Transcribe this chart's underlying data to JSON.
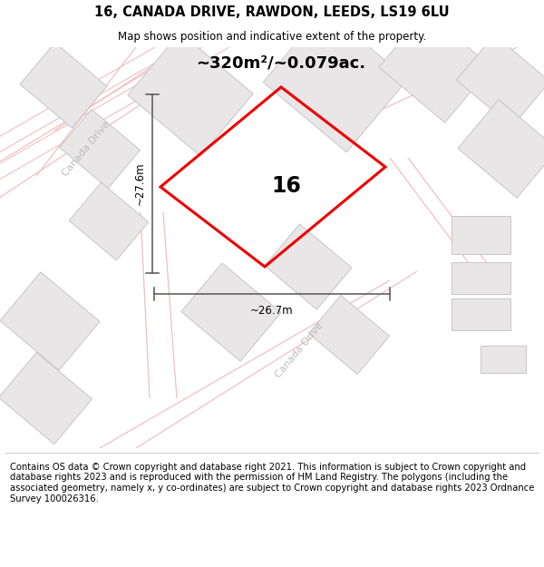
{
  "title": "16, CANADA DRIVE, RAWDON, LEEDS, LS19 6LU",
  "subtitle": "Map shows position and indicative extent of the property.",
  "footer": "Contains OS data © Crown copyright and database right 2021. This information is subject to Crown copyright and database rights 2023 and is reproduced with the permission of HM Land Registry. The polygons (including the associated geometry, namely x, y co-ordinates) are subject to Crown copyright and database rights 2023 Ordnance Survey 100026316.",
  "area_text": "~320m²/~0.079ac.",
  "dim_width": "~26.7m",
  "dim_height": "~27.6m",
  "plot_number": "16",
  "map_bg": "#f7f5f5",
  "road_outline_color": "#f0c0c0",
  "road_fill_color": "#ffffff",
  "building_fill": "#e8e6e6",
  "building_edge": "#c8c5c5",
  "plot_color": "#ee0000",
  "road_label_color": "#bbbbbb",
  "dim_color": "#555555",
  "title_fontsize": 10.5,
  "subtitle_fontsize": 8.5,
  "footer_fontsize": 7.2,
  "map_road_lw": 0.8,
  "building_lw": 0.7
}
